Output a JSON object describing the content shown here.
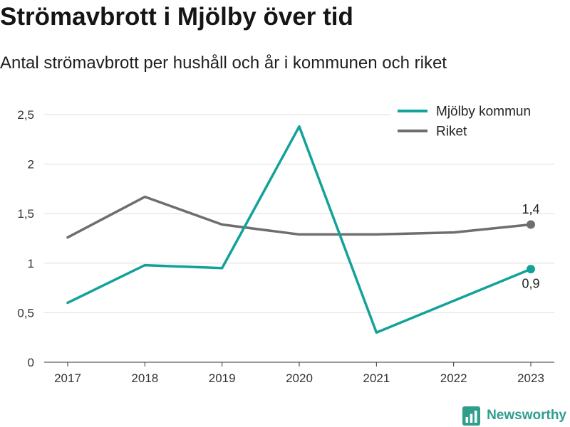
{
  "chart_data": {
    "type": "line",
    "title": "Strömavbrott i Mjölby över tid",
    "subtitle": "Antal strömavbrott per hushåll och år i kommunen och riket",
    "categories": [
      "2017",
      "2018",
      "2019",
      "2020",
      "2021",
      "2022",
      "2023"
    ],
    "series": [
      {
        "name": "Mjölby kommun",
        "color": "#13a29a",
        "values": [
          0.6,
          0.98,
          0.95,
          2.38,
          0.3,
          0.62,
          0.94
        ],
        "end_label": "0,9"
      },
      {
        "name": "Riket",
        "color": "#6e6e6e",
        "values": [
          1.26,
          1.67,
          1.39,
          1.29,
          1.29,
          1.31,
          1.39
        ],
        "end_label": "1,4"
      }
    ],
    "ylim": [
      0,
      2.5
    ],
    "yticks": [
      0,
      0.5,
      1,
      1.5,
      2,
      2.5
    ],
    "ytick_labels": [
      "0",
      "0,5",
      "1",
      "1,5",
      "2",
      "2,5"
    ],
    "grid": "horizontal",
    "legend": "top-right"
  },
  "branding": {
    "name": "Newsworthy",
    "icon": "bar-chart-icon",
    "color": "#2f9e8c"
  }
}
